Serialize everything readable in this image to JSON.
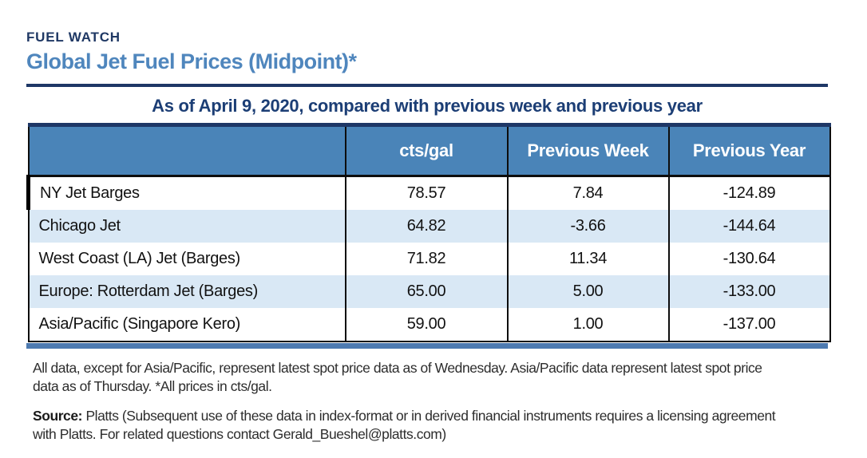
{
  "header": {
    "kicker": "FUEL WATCH",
    "title": "Global Jet Fuel Prices (Midpoint)*",
    "subtitle": "As of April 9, 2020, compared with previous week and previous year"
  },
  "table": {
    "columns": [
      "",
      "cts/gal",
      "Previous Week",
      "Previous Year"
    ],
    "rows": [
      {
        "label": "NY Jet Barges",
        "values": [
          "78.57",
          "7.84",
          "-124.89"
        ]
      },
      {
        "label": "Chicago Jet",
        "values": [
          "64.82",
          "-3.66",
          "-144.64"
        ]
      },
      {
        "label": "West Coast (LA) Jet (Barges)",
        "values": [
          "71.82",
          "11.34",
          "-130.64"
        ]
      },
      {
        "label": "Europe: Rotterdam Jet (Barges)",
        "values": [
          "65.00",
          "5.00",
          "-133.00"
        ]
      },
      {
        "label": "Asia/Pacific (Singapore Kero)",
        "values": [
          "59.00",
          "1.00",
          "-137.00"
        ]
      }
    ]
  },
  "notes": {
    "footnote": "All data, except for Asia/Pacific, represent latest spot price data as of Wednesday. Asia/Pacific data represent latest spot price data as of Thursday. *All prices in cts/gal.",
    "source_label": "Source:",
    "source_text": "Platts (Subsequent use of these data in index-format or in derived financial instruments requires a licensing agreement with Platts. For related questions contact Gerald_Bueshel@platts.com)"
  },
  "chart_data": {
    "type": "table",
    "title": "Global Jet Fuel Prices (Midpoint)*",
    "subtitle": "As of April 9, 2020, compared with previous week and previous year",
    "columns": [
      "",
      "cts/gal",
      "Previous Week",
      "Previous Year"
    ],
    "rows": [
      [
        "NY Jet Barges",
        78.57,
        7.84,
        -124.89
      ],
      [
        "Chicago Jet",
        64.82,
        -3.66,
        -144.64
      ],
      [
        "West Coast (LA) Jet (Barges)",
        71.82,
        11.34,
        -130.64
      ],
      [
        "Europe: Rotterdam Jet (Barges)",
        65.0,
        5.0,
        -133.0
      ],
      [
        "Asia/Pacific (Singapore Kero)",
        59.0,
        1.0,
        -137.0
      ]
    ],
    "units": "cts/gal",
    "as_of_date": "April 9, 2020"
  },
  "colors": {
    "navy": "#1e3766",
    "title_blue": "#4f86bd",
    "header_row_blue": "#4a84b8",
    "alt_row_blue": "#d9e8f5",
    "bottom_bar_blue": "#4d7ab0",
    "header_text": "#ffffff"
  }
}
